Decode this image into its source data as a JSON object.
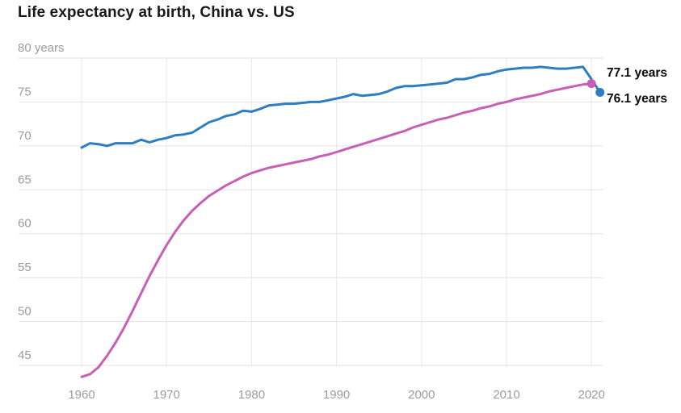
{
  "title": "Life expectancy at birth, China vs. US",
  "colors": {
    "us_blue": "#2e7dc2",
    "china_pink": "#c75fb5",
    "grid_horizontal": "#e2e2e2",
    "grid_vertical": "#e9e9e9",
    "axis_text": "#9b9b9b",
    "title_text": "#181818",
    "end_label_text": "#0b0b0b",
    "background": "#ffffff"
  },
  "chart_data": {
    "type": "line",
    "title": "Life expectancy at birth, China vs. US",
    "xlabel": "",
    "ylabel": "years",
    "grid": true,
    "legend_position": "end-of-line value labels",
    "xlim": [
      1960,
      2021
    ],
    "ylim": [
      43,
      80
    ],
    "x_ticks": [
      1960,
      1970,
      1980,
      1990,
      2000,
      2010,
      2020
    ],
    "y_ticks": [
      {
        "value": 80,
        "label": "80 years"
      },
      {
        "value": 75,
        "label": "75"
      },
      {
        "value": 70,
        "label": "70"
      },
      {
        "value": 65,
        "label": "65"
      },
      {
        "value": 60,
        "label": "60"
      },
      {
        "value": 55,
        "label": "55"
      },
      {
        "value": 50,
        "label": "50"
      },
      {
        "value": 45,
        "label": "45"
      }
    ],
    "series": [
      {
        "name": "US",
        "color": "#2e7dc2",
        "start_year": 1960,
        "end_year": 2021,
        "end_value": 76.1,
        "end_label": "76.1 years",
        "values": [
          69.8,
          70.3,
          70.2,
          70.0,
          70.3,
          70.3,
          70.3,
          70.7,
          70.4,
          70.7,
          70.9,
          71.2,
          71.3,
          71.5,
          72.1,
          72.7,
          73.0,
          73.4,
          73.6,
          74.0,
          73.9,
          74.2,
          74.6,
          74.7,
          74.8,
          74.8,
          74.9,
          75.0,
          75.0,
          75.2,
          75.4,
          75.6,
          75.9,
          75.7,
          75.8,
          75.9,
          76.2,
          76.6,
          76.8,
          76.8,
          76.9,
          77.0,
          77.1,
          77.2,
          77.6,
          77.6,
          77.8,
          78.1,
          78.2,
          78.5,
          78.7,
          78.8,
          78.9,
          78.9,
          79.0,
          78.9,
          78.8,
          78.8,
          78.9,
          79.0,
          77.6,
          76.1
        ]
      },
      {
        "name": "China",
        "color": "#c75fb5",
        "start_year": 1960,
        "end_year": 2020,
        "end_value": 77.1,
        "end_label": "77.1 years",
        "values": [
          43.7,
          44.0,
          44.8,
          46.1,
          47.6,
          49.3,
          51.2,
          53.2,
          55.2,
          57.0,
          58.7,
          60.2,
          61.5,
          62.6,
          63.5,
          64.3,
          64.9,
          65.5,
          66.0,
          66.5,
          66.9,
          67.2,
          67.5,
          67.7,
          67.9,
          68.1,
          68.3,
          68.5,
          68.8,
          69.0,
          69.3,
          69.6,
          69.9,
          70.2,
          70.5,
          70.8,
          71.1,
          71.4,
          71.7,
          72.1,
          72.4,
          72.7,
          73.0,
          73.2,
          73.5,
          73.8,
          74.0,
          74.3,
          74.5,
          74.8,
          75.0,
          75.3,
          75.5,
          75.7,
          75.9,
          76.2,
          76.4,
          76.6,
          76.8,
          77.0,
          77.1
        ]
      }
    ]
  }
}
